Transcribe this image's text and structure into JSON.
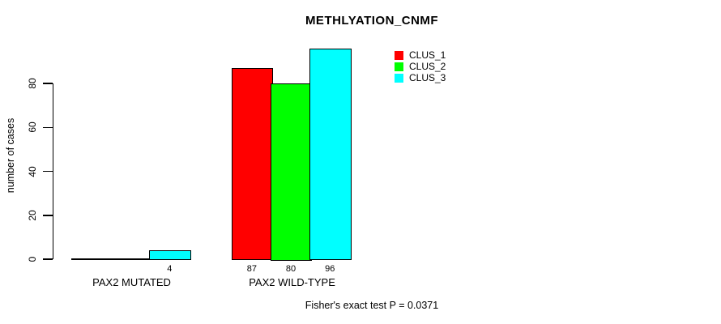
{
  "chart_data": {
    "type": "bar",
    "title": "METHLYATION_CNMF",
    "ylabel": "number of cases",
    "xlabel": "",
    "categories": [
      "PAX2 MUTATED",
      "PAX2 WILD-TYPE"
    ],
    "series": [
      {
        "name": "CLUS_1",
        "color": "#FF0000",
        "values": [
          0,
          87
        ]
      },
      {
        "name": "CLUS_2",
        "color": "#00FF00",
        "values": [
          0,
          80
        ]
      },
      {
        "name": "CLUS_3",
        "color": "#00FFFF",
        "values": [
          4,
          96
        ]
      }
    ],
    "bar_labels": [
      [
        "",
        "",
        "4"
      ],
      [
        "87",
        "80",
        "96"
      ]
    ],
    "yticks": [
      0,
      20,
      40,
      60,
      80
    ],
    "ylim": [
      0,
      96
    ],
    "grid": false,
    "legend_position": "top-right",
    "annotation": "Fisher's exact test P = 0.0371"
  }
}
